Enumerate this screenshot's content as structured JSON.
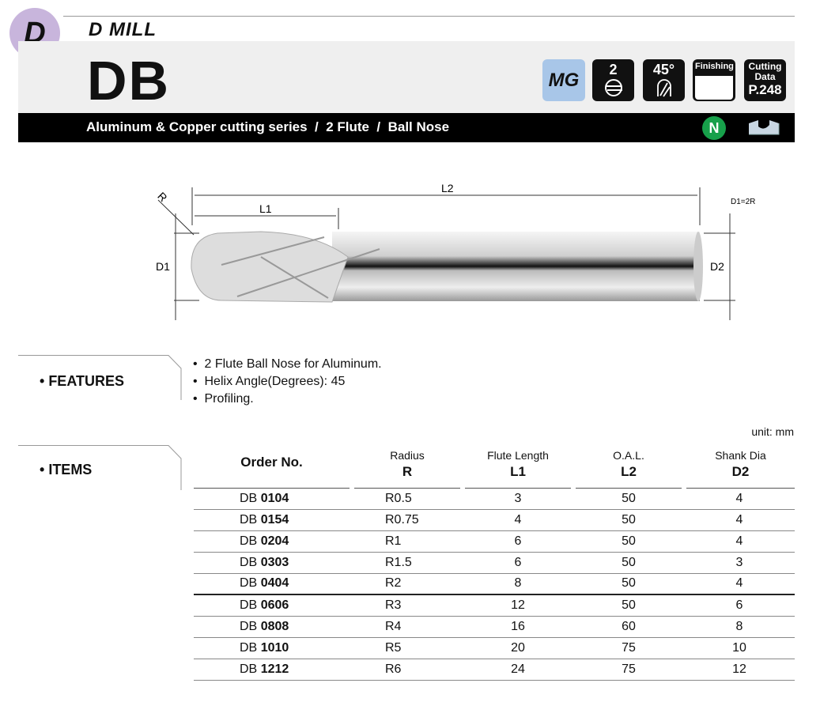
{
  "header": {
    "section_letter": "D",
    "section_title": "D MILL",
    "product_code": "DB",
    "badges": {
      "material": "MG",
      "flutes": "2",
      "helix": "45°",
      "finishing": "Finishing",
      "cutting_data_l1": "Cutting",
      "cutting_data_l2": "Data",
      "cutting_data_page": "P.248"
    },
    "subtitle": "Aluminum & Copper cutting series  /  2 Flute  /  Ball Nose",
    "n_badge": "N",
    "colors": {
      "circle": "#c8b5dc",
      "mg": "#a8c6e8",
      "n": "#17a04a"
    }
  },
  "drawing": {
    "r": "R",
    "l1": "L1",
    "l2": "L2",
    "d1": "D1",
    "d2": "D2",
    "note": "D1=2R"
  },
  "features": {
    "label": "FEATURES",
    "items": [
      "2 Flute Ball Nose for Aluminum.",
      "Helix Angle(Degrees): 45",
      "Profiling."
    ]
  },
  "items": {
    "label": "ITEMS",
    "unit": "unit: mm",
    "columns": [
      {
        "top": "",
        "main": "Order No."
      },
      {
        "top": "Radius",
        "main": "R"
      },
      {
        "top": "Flute Length",
        "main": "L1"
      },
      {
        "top": "O.A.L.",
        "main": "L2"
      },
      {
        "top": "Shank Dia",
        "main": "D2"
      }
    ],
    "rows": [
      {
        "prefix": "DB",
        "num": "0104",
        "r": "R0.5",
        "l1": "3",
        "l2": "50",
        "d2": "4"
      },
      {
        "prefix": "DB",
        "num": "0154",
        "r": "R0.75",
        "l1": "4",
        "l2": "50",
        "d2": "4"
      },
      {
        "prefix": "DB",
        "num": "0204",
        "r": "R1",
        "l1": "6",
        "l2": "50",
        "d2": "4"
      },
      {
        "prefix": "DB",
        "num": "0303",
        "r": "R1.5",
        "l1": "6",
        "l2": "50",
        "d2": "3"
      },
      {
        "prefix": "DB",
        "num": "0404",
        "r": "R2",
        "l1": "8",
        "l2": "50",
        "d2": "4"
      },
      {
        "prefix": "DB",
        "num": "0606",
        "r": "R3",
        "l1": "12",
        "l2": "50",
        "d2": "6"
      },
      {
        "prefix": "DB",
        "num": "0808",
        "r": "R4",
        "l1": "16",
        "l2": "60",
        "d2": "8"
      },
      {
        "prefix": "DB",
        "num": "1010",
        "r": "R5",
        "l1": "20",
        "l2": "75",
        "d2": "10"
      },
      {
        "prefix": "DB",
        "num": "1212",
        "r": "R6",
        "l1": "24",
        "l2": "75",
        "d2": "12"
      }
    ]
  }
}
